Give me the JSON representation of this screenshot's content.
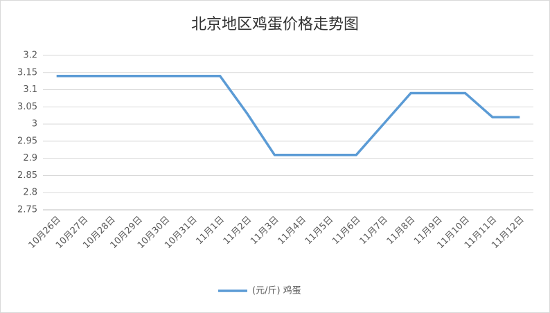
{
  "chart_data": {
    "type": "line",
    "title": "北京地区鸡蛋价格走势图",
    "categories": [
      "10月26日",
      "10月27日",
      "10月28日",
      "10月29日",
      "10月30日",
      "10月31日",
      "11月1日",
      "11月2日",
      "11月3日",
      "11月4日",
      "11月5日",
      "11月6日",
      "11月7日",
      "11月8日",
      "11月9日",
      "11月10日",
      "11月11日",
      "11月12日"
    ],
    "series": [
      {
        "name": "(元/斤) 鸡蛋",
        "color": "#5b9bd5",
        "values": [
          3.14,
          3.14,
          3.14,
          3.14,
          3.14,
          3.14,
          3.14,
          3.03,
          2.91,
          2.91,
          2.91,
          2.91,
          3.0,
          3.09,
          3.09,
          3.09,
          3.02,
          3.02
        ]
      }
    ],
    "ylim": [
      2.75,
      3.2
    ],
    "yticks": [
      2.75,
      2.8,
      2.85,
      2.9,
      2.95,
      3,
      3.05,
      3.1,
      3.15,
      3.2
    ],
    "grid": true,
    "legend": "bottom"
  }
}
